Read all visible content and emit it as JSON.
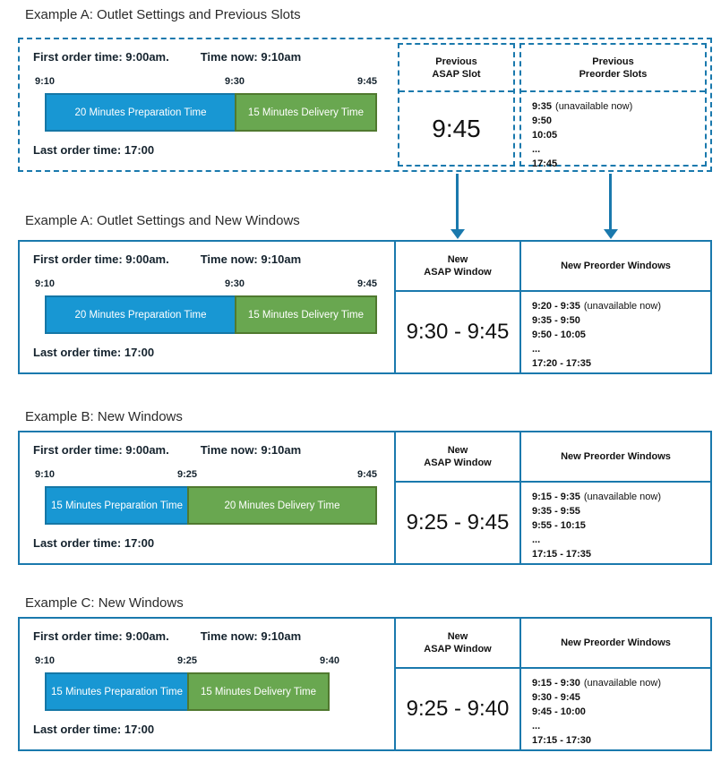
{
  "colors": {
    "border_blue": "#1a79ad",
    "bar_blue_fill": "#1897d3",
    "bar_blue_border": "#1577a6",
    "bar_green_fill": "#69a750",
    "bar_green_border": "#50792f",
    "arrow_blue": "#1a79ad",
    "text_dark": "#15232e"
  },
  "sections": [
    {
      "title": "Example A: Outlet Settings and Previous Slots",
      "outlet": {
        "first_order": "First order time: 9:00am.",
        "time_now": "Time now: 9:10am",
        "last_order": "Last order time: 17:00",
        "timeline": {
          "start": "9:10",
          "mid": "9:30",
          "end": "9:45",
          "prep": "20 Minutes Preparation Time",
          "delivery": "15 Minutes Delivery Time"
        }
      },
      "asap": {
        "line1": "Previous",
        "line2": "ASAP Slot",
        "value": "9:45"
      },
      "preorder": {
        "line1": "Previous",
        "line2": "Preorder Slots",
        "rows": [
          {
            "time": "9:35",
            "note": "(unavailable now)"
          },
          {
            "time": "9:50",
            "note": ""
          },
          {
            "time": "10:05",
            "note": ""
          },
          {
            "time": "...",
            "note": ""
          },
          {
            "time": "17:45",
            "note": ""
          }
        ]
      }
    },
    {
      "title": "Example A: Outlet Settings and New Windows",
      "outlet": {
        "first_order": "First order time: 9:00am.",
        "time_now": "Time now: 9:10am",
        "last_order": "Last order time: 17:00",
        "timeline": {
          "start": "9:10",
          "mid": "9:30",
          "end": "9:45",
          "prep": "20 Minutes Preparation Time",
          "delivery": "15 Minutes Delivery Time"
        }
      },
      "asap": {
        "line1": "New",
        "line2": "ASAP Window",
        "value": "9:30 - 9:45"
      },
      "preorder": {
        "line1": "New Preorder Windows",
        "line2": "",
        "rows": [
          {
            "time": "9:20 - 9:35",
            "note": "(unavailable now)"
          },
          {
            "time": "9:35 - 9:50",
            "note": ""
          },
          {
            "time": "9:50 - 10:05",
            "note": ""
          },
          {
            "time": "...",
            "note": ""
          },
          {
            "time": "17:20 - 17:35",
            "note": ""
          }
        ]
      }
    },
    {
      "title": "Example B: New Windows",
      "outlet": {
        "first_order": "First order time: 9:00am.",
        "time_now": "Time now: 9:10am",
        "last_order": "Last order time: 17:00",
        "timeline": {
          "start": "9:10",
          "mid": "9:25",
          "end": "9:45",
          "prep": "15 Minutes Preparation Time",
          "delivery": "20 Minutes Delivery Time"
        }
      },
      "asap": {
        "line1": "New",
        "line2": "ASAP Window",
        "value": "9:25 - 9:45"
      },
      "preorder": {
        "line1": "New Preorder Windows",
        "line2": "",
        "rows": [
          {
            "time": "9:15 - 9:35",
            "note": "(unavailable now)"
          },
          {
            "time": "9:35 - 9:55",
            "note": ""
          },
          {
            "time": "9:55 - 10:15",
            "note": ""
          },
          {
            "time": "...",
            "note": ""
          },
          {
            "time": "17:15 - 17:35",
            "note": ""
          }
        ]
      }
    },
    {
      "title": "Example C: New Windows",
      "outlet": {
        "first_order": "First order time: 9:00am.",
        "time_now": "Time now: 9:10am",
        "last_order": "Last order time: 17:00",
        "timeline": {
          "start": "9:10",
          "mid": "9:25",
          "end": "9:40",
          "prep": "15 Minutes Preparation Time",
          "delivery": "15 Minutes Delivery Time"
        }
      },
      "asap": {
        "line1": "New",
        "line2": "ASAP Window",
        "value": "9:25 - 9:40"
      },
      "preorder": {
        "line1": "New Preorder Windows",
        "line2": "",
        "rows": [
          {
            "time": "9:15 - 9:30",
            "note": "(unavailable now)"
          },
          {
            "time": "9:30 - 9:45",
            "note": ""
          },
          {
            "time": "9:45 - 10:00",
            "note": ""
          },
          {
            "time": "...",
            "note": ""
          },
          {
            "time": "17:15 - 17:30",
            "note": ""
          }
        ]
      }
    }
  ]
}
